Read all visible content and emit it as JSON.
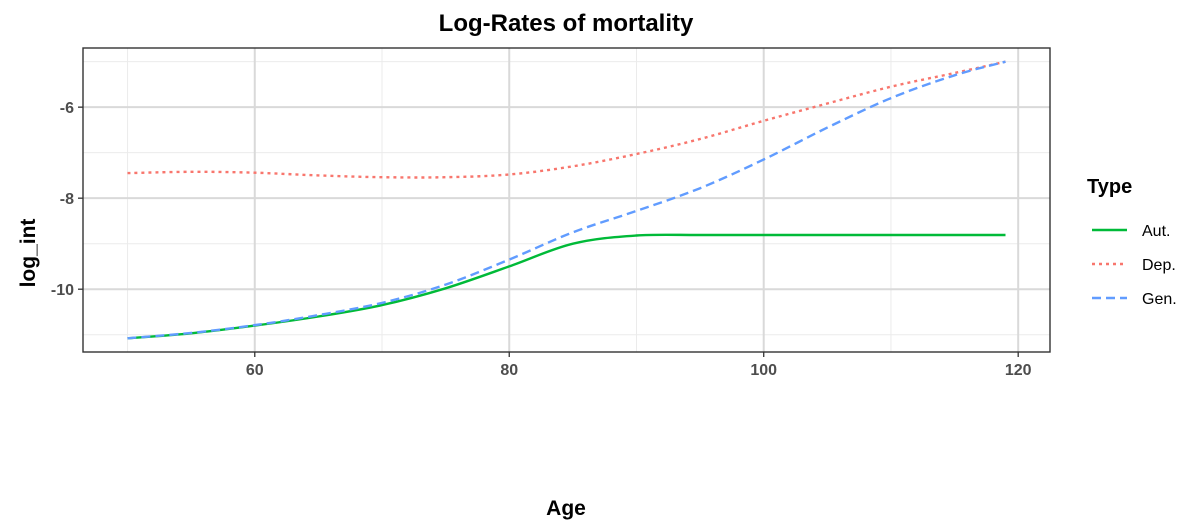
{
  "chart_data": {
    "type": "line",
    "title": "Log-Rates of mortality",
    "xlabel": "Age",
    "ylabel": "log_int",
    "xlim": [
      46.5,
      122.5
    ],
    "ylim": [
      -11.38,
      -4.7
    ],
    "x_ticks": [
      60,
      80,
      100,
      120
    ],
    "y_ticks": [
      -10,
      -8,
      -6
    ],
    "x_minor": [
      50,
      70,
      90,
      110
    ],
    "y_minor": [
      -11,
      -9,
      -7,
      -5
    ],
    "grid": true,
    "legend": {
      "title": "Type",
      "placement": "right"
    },
    "x": [
      50,
      55,
      60,
      65,
      70,
      75,
      80,
      85,
      90,
      95,
      100,
      105,
      110,
      115,
      119
    ],
    "series": [
      {
        "name": "Aut.",
        "color": "#00ba38",
        "dash": "solid",
        "values": [
          -11.08,
          -10.97,
          -10.8,
          -10.6,
          -10.35,
          -9.98,
          -9.5,
          -9.0,
          -8.82,
          -8.81,
          -8.81,
          -8.81,
          -8.81,
          -8.81,
          -8.81
        ]
      },
      {
        "name": "Dep.",
        "color": "#f8766d",
        "dash": "dotted",
        "values": [
          -7.45,
          -7.42,
          -7.44,
          -7.5,
          -7.54,
          -7.54,
          -7.48,
          -7.3,
          -7.03,
          -6.7,
          -6.3,
          -5.92,
          -5.55,
          -5.25,
          -5.0
        ]
      },
      {
        "name": "Gen.",
        "color": "#619cff",
        "dash": "dashed",
        "values": [
          -11.08,
          -10.96,
          -10.79,
          -10.57,
          -10.3,
          -9.9,
          -9.35,
          -8.75,
          -8.28,
          -7.78,
          -7.15,
          -6.45,
          -5.8,
          -5.3,
          -5.0
        ]
      }
    ]
  }
}
